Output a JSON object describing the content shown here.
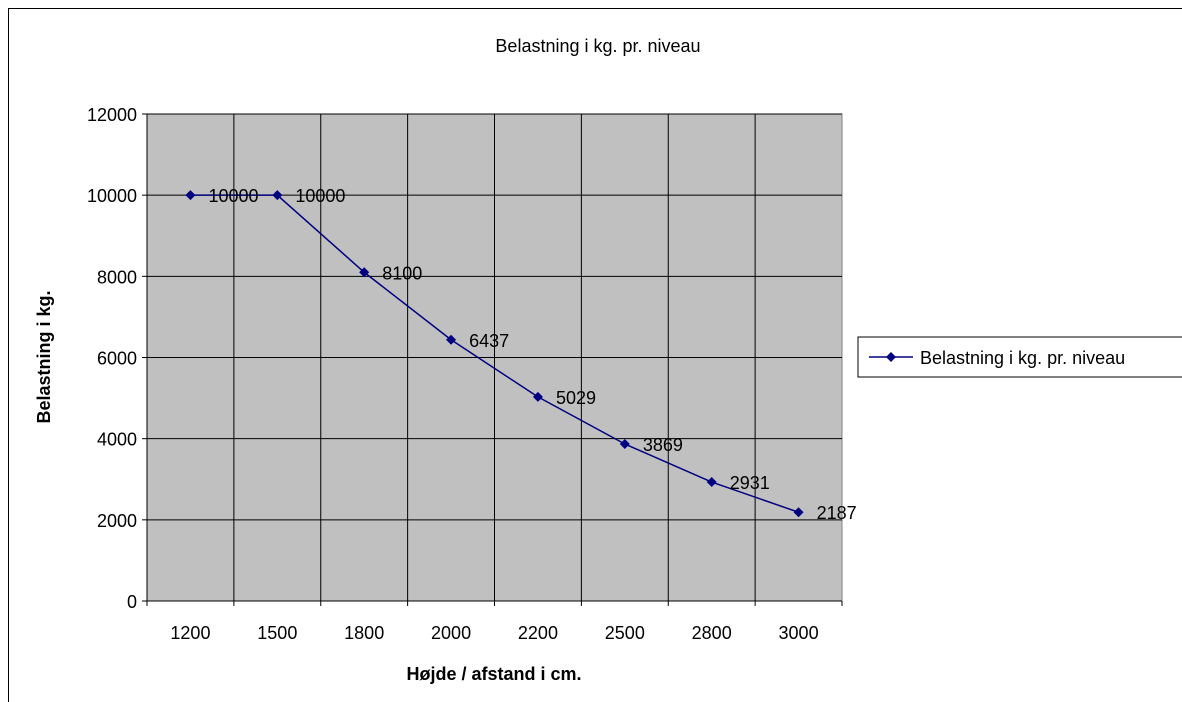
{
  "chart_data": {
    "type": "line",
    "title": "Belastning i kg. pr. niveau",
    "xlabel": "Højde / afstand i cm.",
    "ylabel": "Belastning i kg.",
    "categories": [
      "1200",
      "1500",
      "1800",
      "2000",
      "2200",
      "2500",
      "2800",
      "3000"
    ],
    "series": [
      {
        "name": "Belastning i kg. pr. niveau",
        "values": [
          10000,
          10000,
          8100,
          6437,
          5029,
          3869,
          2931,
          2187
        ],
        "color": "#000080"
      }
    ],
    "ylim": [
      0,
      12000
    ],
    "yticks": [
      0,
      2000,
      4000,
      6000,
      8000,
      10000,
      12000
    ],
    "grid": true,
    "plot_background": "#c0c0c0",
    "legend_position": "right",
    "data_labels": true
  }
}
